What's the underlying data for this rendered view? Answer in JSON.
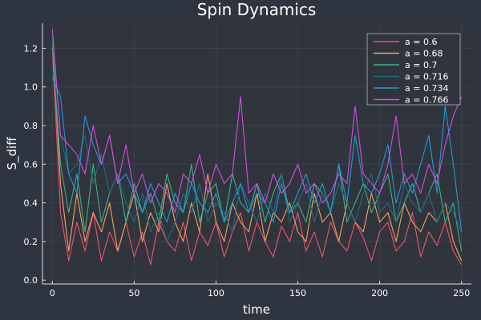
{
  "chart_data": {
    "type": "line",
    "title": "Spin Dynamics",
    "xlabel": "time",
    "ylabel": "S_diff",
    "xlim": [
      -6,
      256
    ],
    "ylim": [
      -0.02,
      1.33
    ],
    "xticks": [
      0,
      50,
      100,
      150,
      200,
      250
    ],
    "yticks": [
      0.0,
      0.2,
      0.4,
      0.6,
      0.8,
      1.0,
      1.2
    ],
    "xtick_labels": [
      "0",
      "50",
      "100",
      "150",
      "200",
      "250"
    ],
    "ytick_labels": [
      "0.0",
      "0.2",
      "0.4",
      "0.6",
      "0.8",
      "1.0",
      "1.2"
    ],
    "grid": true,
    "legend_position": "top-right",
    "background_color": "#2e3440",
    "plot_background_color": "#30343c",
    "x": [
      0,
      5,
      10,
      15,
      20,
      25,
      30,
      35,
      40,
      45,
      50,
      55,
      60,
      65,
      70,
      75,
      80,
      85,
      90,
      95,
      100,
      105,
      110,
      115,
      120,
      125,
      130,
      135,
      140,
      145,
      150,
      155,
      160,
      165,
      170,
      175,
      180,
      185,
      190,
      195,
      200,
      205,
      210,
      215,
      220,
      225,
      230,
      235,
      240,
      245,
      250
    ],
    "series": [
      {
        "name": "a = 0.6",
        "color": "#f1536d",
        "values": [
          1.2,
          0.35,
          0.1,
          0.3,
          0.15,
          0.35,
          0.1,
          0.25,
          0.15,
          0.3,
          0.12,
          0.25,
          0.08,
          0.3,
          0.2,
          0.15,
          0.3,
          0.1,
          0.25,
          0.18,
          0.3,
          0.12,
          0.25,
          0.35,
          0.15,
          0.3,
          0.2,
          0.12,
          0.28,
          0.2,
          0.35,
          0.15,
          0.25,
          0.12,
          0.3,
          0.2,
          0.15,
          0.3,
          0.22,
          0.1,
          0.25,
          0.3,
          0.15,
          0.2,
          0.35,
          0.12,
          0.25,
          0.18,
          0.3,
          0.15,
          0.08
        ]
      },
      {
        "name": "a = 0.68",
        "color": "#f5a35c",
        "values": [
          1.25,
          0.5,
          0.15,
          0.45,
          0.2,
          0.35,
          0.25,
          0.4,
          0.15,
          0.3,
          0.45,
          0.2,
          0.35,
          0.25,
          0.5,
          0.3,
          0.2,
          0.4,
          0.25,
          0.55,
          0.3,
          0.2,
          0.4,
          0.3,
          0.25,
          0.45,
          0.2,
          0.35,
          0.3,
          0.4,
          0.25,
          0.2,
          0.45,
          0.3,
          0.35,
          0.2,
          0.4,
          0.3,
          0.25,
          0.45,
          0.3,
          0.35,
          0.2,
          0.4,
          0.3,
          0.25,
          0.35,
          0.3,
          0.4,
          0.2,
          0.1
        ]
      },
      {
        "name": "a = 0.7",
        "color": "#3bb189",
        "values": [
          1.2,
          0.6,
          0.35,
          0.55,
          0.25,
          0.6,
          0.3,
          0.45,
          0.55,
          0.3,
          0.5,
          0.35,
          0.45,
          0.3,
          0.55,
          0.4,
          0.35,
          0.6,
          0.3,
          0.45,
          0.5,
          0.3,
          0.55,
          0.4,
          0.35,
          0.5,
          0.3,
          0.45,
          0.55,
          0.35,
          0.4,
          0.3,
          0.5,
          0.45,
          0.35,
          0.6,
          0.3,
          0.4,
          0.5,
          0.35,
          0.45,
          0.55,
          0.3,
          0.4,
          0.5,
          0.35,
          0.45,
          0.55,
          0.3,
          0.4,
          0.15
        ]
      },
      {
        "name": "a = 0.716",
        "color": "#1f6e83",
        "values": [
          1.25,
          0.75,
          0.55,
          0.6,
          0.75,
          0.5,
          0.65,
          0.45,
          0.55,
          0.4,
          0.3,
          0.45,
          0.25,
          0.35,
          0.2,
          0.3,
          0.45,
          0.35,
          0.5,
          0.3,
          0.4,
          0.35,
          0.25,
          0.5,
          0.4,
          0.3,
          0.45,
          0.35,
          0.55,
          0.3,
          0.4,
          0.5,
          0.3,
          0.45,
          0.35,
          0.5,
          0.4,
          0.3,
          0.45,
          0.55,
          0.35,
          0.4,
          0.3,
          0.5,
          0.4,
          0.35,
          0.45,
          0.3,
          0.4,
          0.35,
          0.25
        ]
      },
      {
        "name": "a = 0.734",
        "color": "#1e9bd9",
        "values": [
          1.05,
          0.95,
          0.55,
          0.45,
          0.85,
          0.7,
          0.6,
          0.75,
          0.5,
          0.55,
          0.45,
          0.35,
          0.5,
          0.4,
          0.3,
          0.45,
          0.35,
          0.5,
          0.4,
          0.35,
          0.45,
          0.3,
          0.4,
          0.5,
          0.35,
          0.45,
          0.4,
          0.3,
          0.5,
          0.35,
          0.45,
          0.55,
          0.4,
          0.5,
          0.35,
          0.6,
          0.4,
          0.75,
          0.5,
          0.45,
          0.55,
          0.7,
          0.4,
          0.55,
          0.45,
          0.6,
          0.75,
          0.45,
          0.9,
          0.6,
          0.25
        ]
      },
      {
        "name": "a = 0.766",
        "color": "#d64be5",
        "values": [
          1.3,
          0.75,
          0.7,
          0.65,
          0.55,
          0.8,
          0.6,
          0.75,
          0.5,
          0.7,
          0.45,
          0.55,
          0.4,
          0.5,
          0.45,
          0.35,
          0.55,
          0.5,
          0.65,
          0.45,
          0.6,
          0.5,
          0.55,
          0.95,
          0.45,
          0.5,
          0.4,
          0.55,
          0.45,
          0.5,
          0.6,
          0.45,
          0.5,
          0.4,
          0.45,
          0.55,
          0.5,
          0.9,
          0.55,
          0.5,
          0.45,
          0.6,
          0.85,
          0.5,
          0.55,
          0.45,
          0.6,
          0.5,
          0.7,
          0.85,
          0.95
        ]
      }
    ]
  }
}
